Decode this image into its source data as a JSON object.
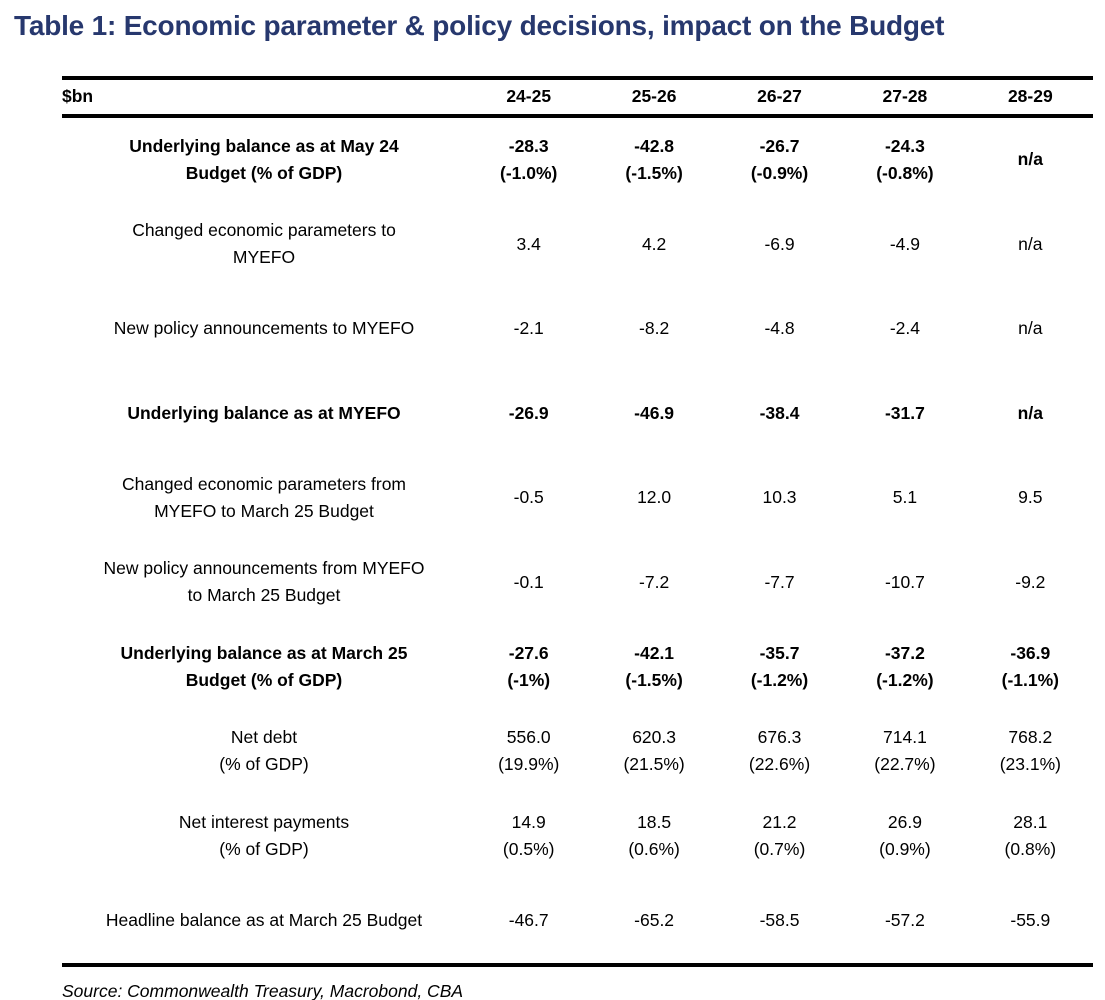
{
  "title": "Table 1: Economic parameter & policy decisions, impact on the Budget",
  "table": {
    "unit_header": "$bn",
    "columns": [
      "24-25",
      "25-26",
      "26-27",
      "27-28",
      "28-29"
    ],
    "rows": [
      {
        "label": "Underlying balance as at May 24\nBudget (% of GDP)",
        "bold": true,
        "values": [
          "-28.3\n(-1.0%)",
          "-42.8\n(-1.5%)",
          "-26.7\n(-0.9%)",
          "-24.3\n(-0.8%)",
          "n/a"
        ]
      },
      {
        "label": "Changed economic parameters to\nMYEFO",
        "bold": false,
        "values": [
          "3.4",
          "4.2",
          "-6.9",
          "-4.9",
          "n/a"
        ]
      },
      {
        "label": "New policy announcements to MYEFO",
        "bold": false,
        "values": [
          "-2.1",
          "-8.2",
          "-4.8",
          "-2.4",
          "n/a"
        ]
      },
      {
        "label": "Underlying balance as at MYEFO",
        "bold": true,
        "values": [
          "-26.9",
          "-46.9",
          "-38.4",
          "-31.7",
          "n/a"
        ]
      },
      {
        "label": "Changed economic parameters from\nMYEFO to March 25 Budget",
        "bold": false,
        "values": [
          "-0.5",
          "12.0",
          "10.3",
          "5.1",
          "9.5"
        ]
      },
      {
        "label": "New policy announcements from MYEFO\nto March 25 Budget",
        "bold": false,
        "values": [
          "-0.1",
          "-7.2",
          "-7.7",
          "-10.7",
          "-9.2"
        ]
      },
      {
        "label": "Underlying balance as at March 25\nBudget (% of GDP)",
        "bold": true,
        "values": [
          "-27.6\n(-1%)",
          "-42.1\n(-1.5%)",
          "-35.7\n(-1.2%)",
          "-37.2\n(-1.2%)",
          "-36.9\n(-1.1%)"
        ]
      },
      {
        "label": "Net debt\n(% of GDP)",
        "bold": false,
        "values": [
          "556.0\n(19.9%)",
          "620.3\n(21.5%)",
          "676.3\n(22.6%)",
          "714.1\n(22.7%)",
          "768.2\n(23.1%)"
        ]
      },
      {
        "label": "Net interest payments\n(% of GDP)",
        "bold": false,
        "values": [
          "14.9\n(0.5%)",
          "18.5\n(0.6%)",
          "21.2\n(0.7%)",
          "26.9\n(0.9%)",
          "28.1\n(0.8%)"
        ]
      },
      {
        "label": "Headline balance as at March 25 Budget",
        "bold": false,
        "values": [
          "-46.7",
          "-65.2",
          "-58.5",
          "-57.2",
          "-55.9"
        ]
      }
    ]
  },
  "source": "Source: Commonwealth Treasury, Macrobond, CBA",
  "colors": {
    "title": "#27386E",
    "text": "#000000",
    "rule": "#000000"
  }
}
